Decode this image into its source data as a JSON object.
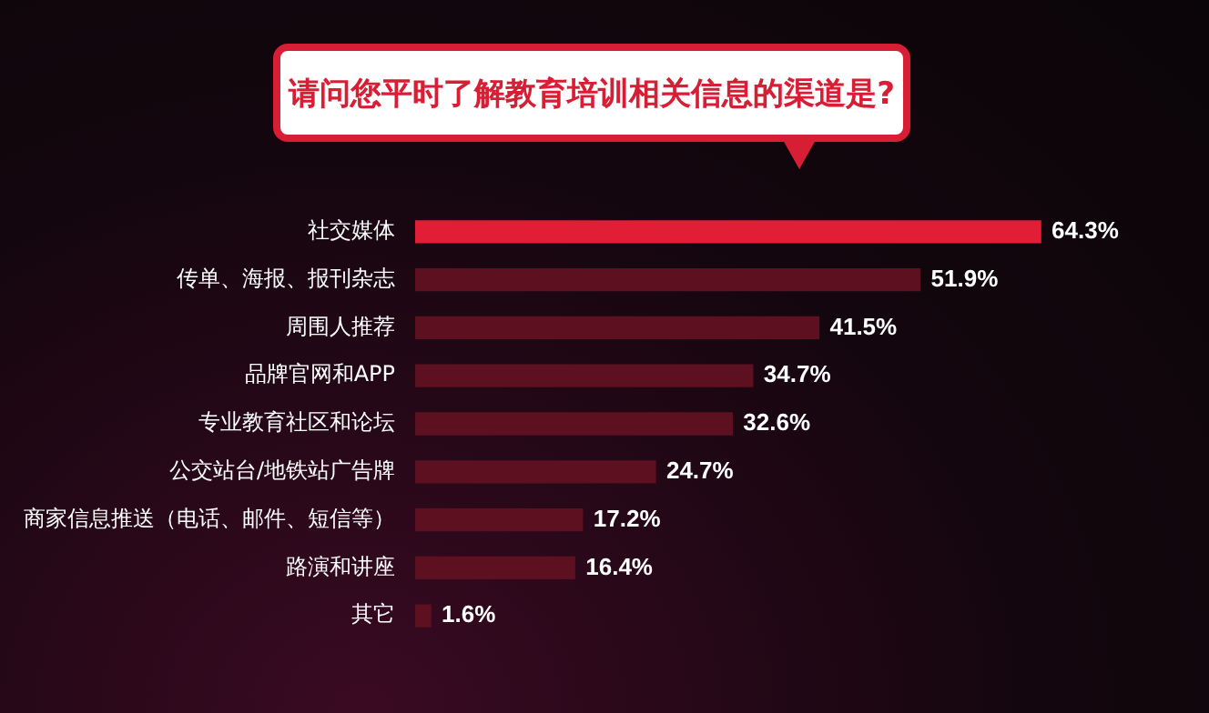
{
  "chart_data": {
    "type": "bar",
    "orientation": "horizontal",
    "title": "请问您平时了解教育培训相关信息的渠道是?",
    "categories": [
      "社交媒体",
      "传单、海报、报刊杂志",
      "周围人推荐",
      "品牌官网和APP",
      "专业教育社区和论坛",
      "公交站台/地铁站广告牌",
      "商家信息推送（电话、邮件、短信等）",
      "路演和讲座",
      "其它"
    ],
    "values": [
      64.3,
      51.9,
      41.5,
      34.7,
      32.6,
      24.7,
      17.2,
      16.4,
      1.6
    ],
    "value_labels": [
      "64.3%",
      "51.9%",
      "41.5%",
      "34.7%",
      "32.6%",
      "24.7%",
      "17.2%",
      "16.4%",
      "1.6%"
    ],
    "colors": [
      "#e21e36",
      "#5c1020",
      "#5c1020",
      "#5c1020",
      "#5c1020",
      "#5c1020",
      "#5c1020",
      "#5c1020",
      "#5c1020"
    ],
    "legend": false
  }
}
